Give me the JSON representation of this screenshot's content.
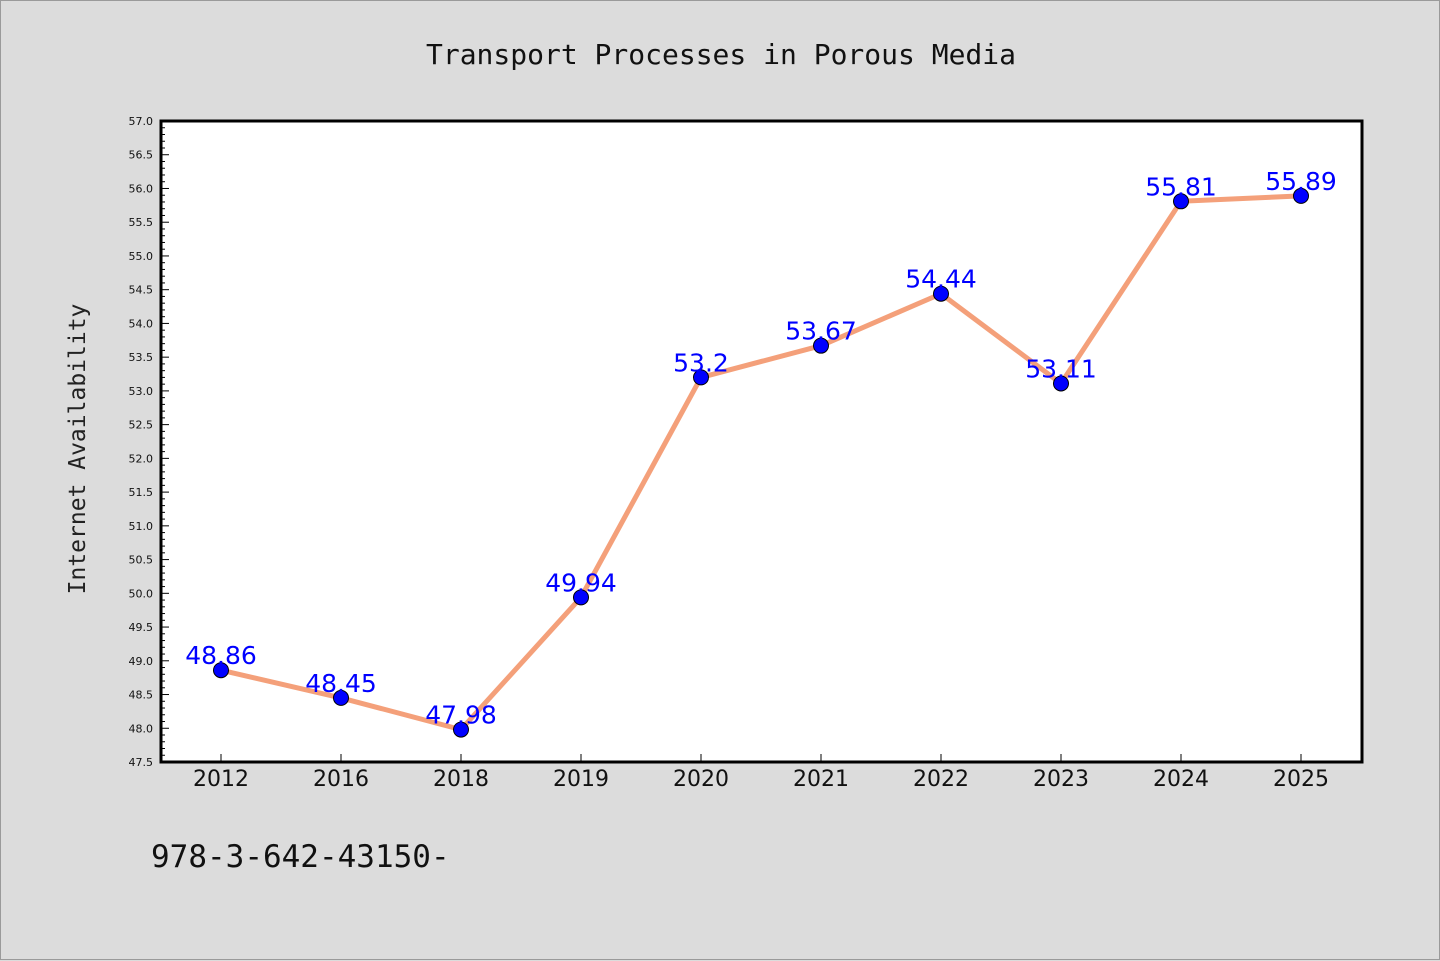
{
  "chart_data": {
    "type": "line",
    "title": "Transport Processes in Porous Media",
    "xlabel": "",
    "ylabel": "Internet Availability",
    "categories": [
      "2012",
      "2016",
      "2018",
      "2019",
      "2020",
      "2021",
      "2022",
      "2023",
      "2024",
      "2025"
    ],
    "series": [
      {
        "values": [
          48.86,
          48.45,
          47.98,
          49.94,
          53.2,
          53.67,
          54.44,
          53.11,
          55.81,
          55.89
        ],
        "data_labels": [
          "48.86",
          "48.45",
          "47.98",
          "49.94",
          "53.2",
          "53.67",
          "54.44",
          "53.11",
          "55.81",
          "55.89"
        ]
      }
    ],
    "ylim": [
      47.5,
      57.0
    ],
    "yticks": [
      "47.5",
      "48.0",
      "48.5",
      "49.0",
      "49.5",
      "50.0",
      "50.5",
      "51.0",
      "51.5",
      "52.0",
      "52.5",
      "53.0",
      "53.5",
      "54.0",
      "54.5",
      "55.0",
      "55.5",
      "56.0",
      "56.5",
      "57.0"
    ],
    "grid": false,
    "legend": "none",
    "colors": {
      "background": "#dcdcdc",
      "plot_area": "#ffffff",
      "line": "#f4a07a",
      "marker": "#0000ff",
      "data_label": "#0000ff"
    }
  },
  "footer": {
    "isbn": "978-3-642-43150-"
  }
}
